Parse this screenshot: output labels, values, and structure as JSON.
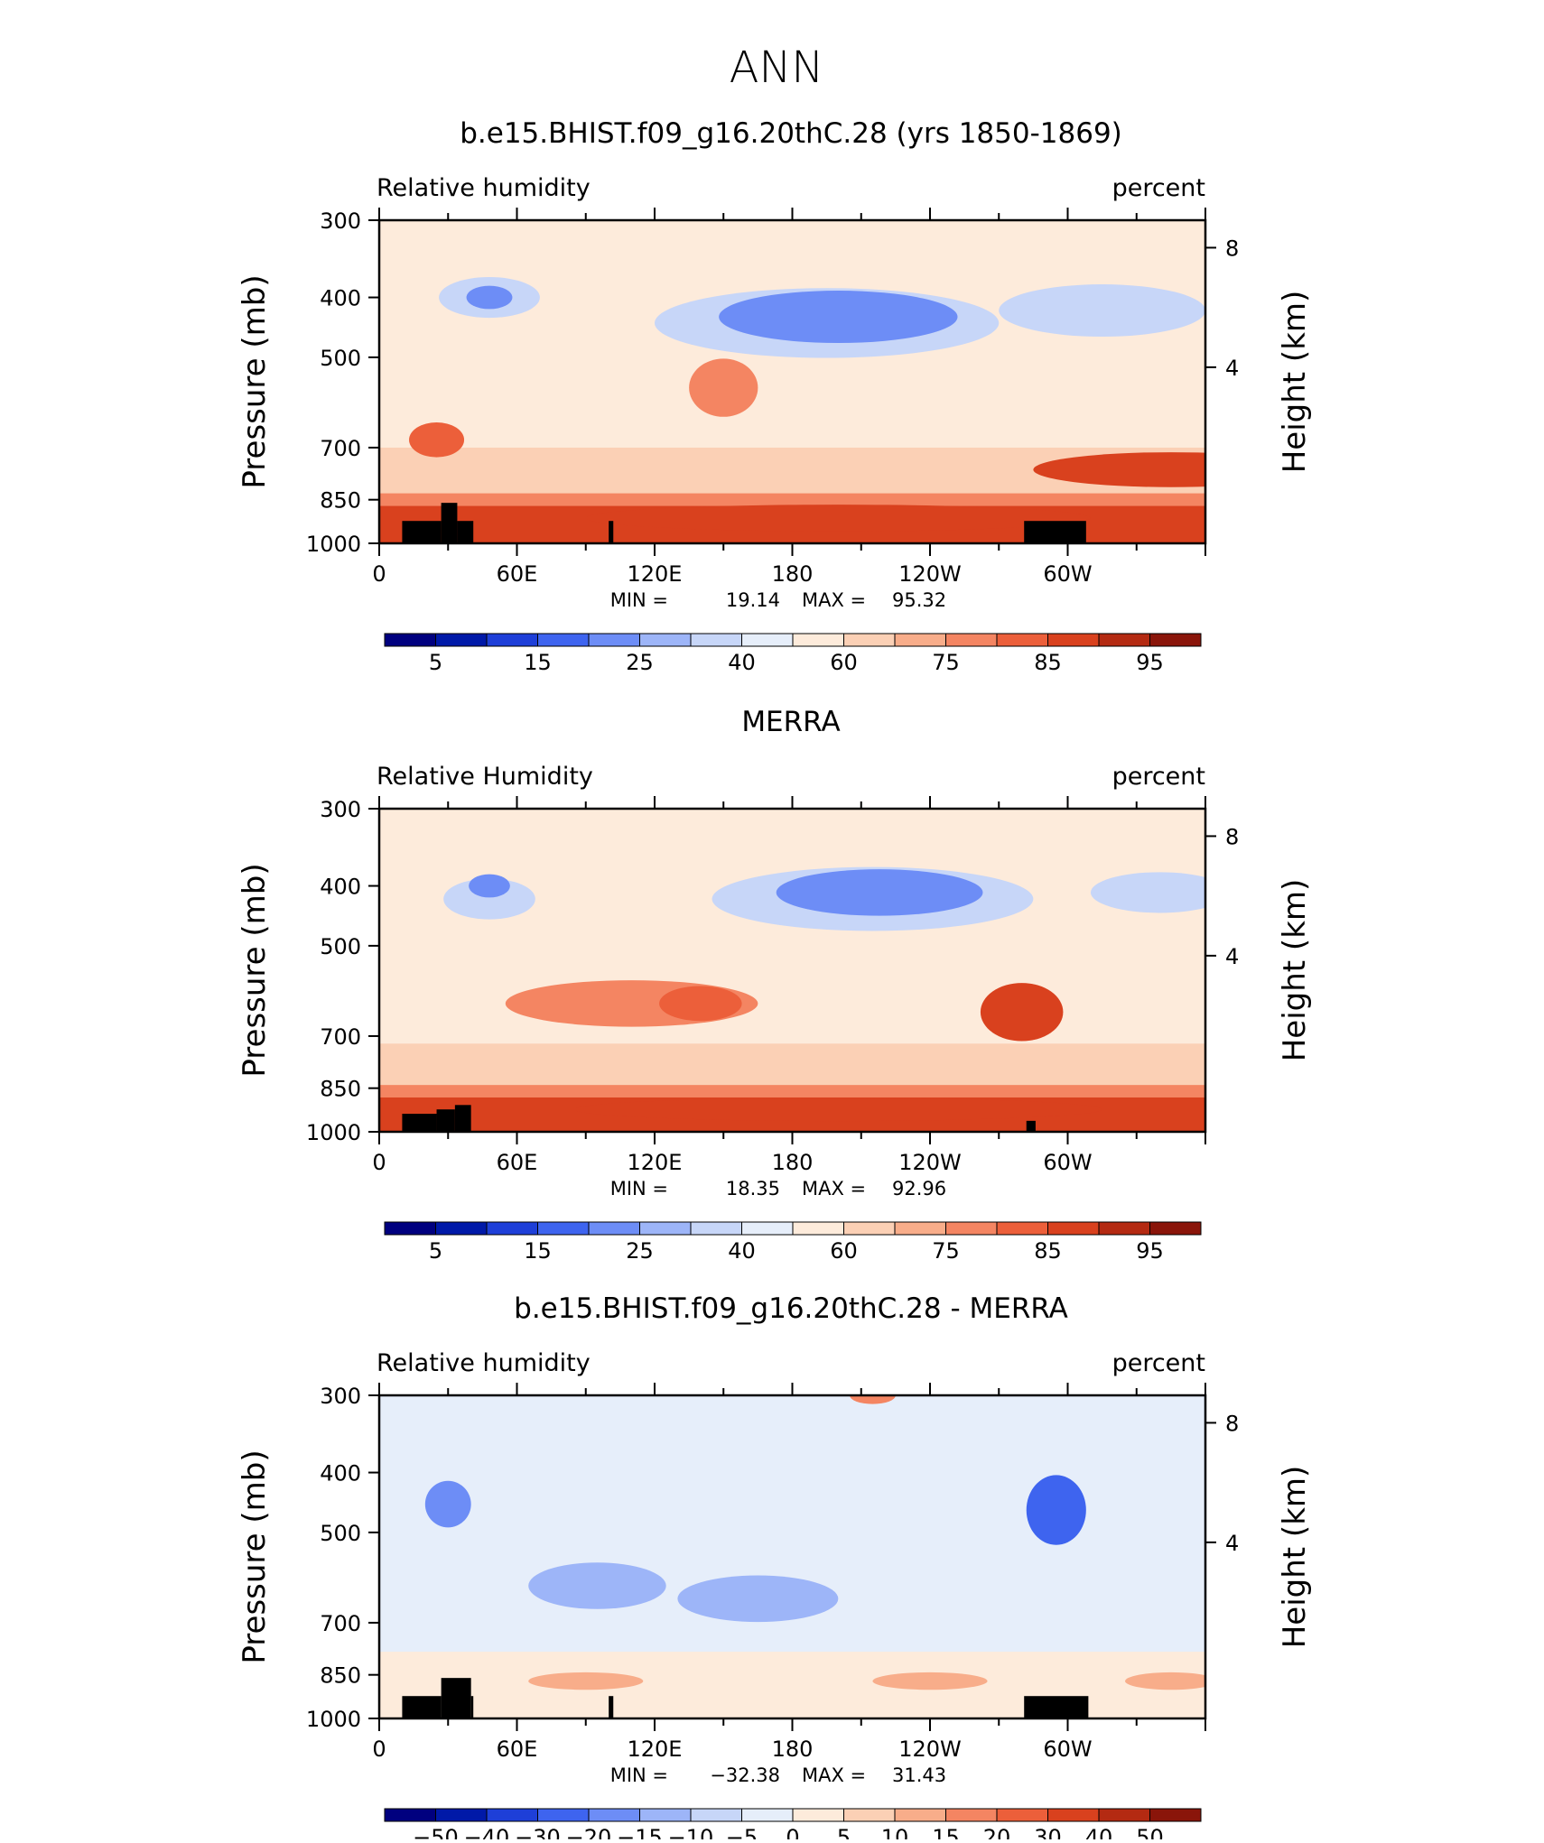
{
  "figure_title": "ANN",
  "chart_data": [
    {
      "type": "heatmap",
      "title": "b.e15.BHIST.f09_g16.20thC.28 (yrs 1850-1869)",
      "left_label": "Relative humidity",
      "right_label": "percent",
      "ylabel": "Pressure (mb)",
      "ylabel_right": "Height (km)",
      "yticks": [
        "300",
        "400",
        "500",
        "700",
        "850",
        "1000"
      ],
      "yticks_right": [
        "8",
        "4"
      ],
      "xticks": [
        "0",
        "60E",
        "120E",
        "180",
        "120W",
        "60W"
      ],
      "stats": {
        "min_label": "MIN =",
        "min": "19.14",
        "max_label": "MAX =",
        "max": "95.32"
      },
      "colorbar_labels": [
        "5",
        "15",
        "25",
        "40",
        "60",
        "75",
        "85",
        "95"
      ],
      "colorbar_colors": [
        "#00007f",
        "#0019a8",
        "#1e3fd8",
        "#3e64ef",
        "#6d8df6",
        "#9db5f8",
        "#c7d6f8",
        "#e6eefa",
        "#fdebdb",
        "#fbd0b5",
        "#f8ad8a",
        "#f48562",
        "#ec5f3a",
        "#d9411e",
        "#b42a12",
        "#8a150a"
      ],
      "blobs": [
        {
          "lon": 48,
          "p": 400,
          "rx": 22,
          "ry": 3.5,
          "value": 30
        },
        {
          "lon": 48,
          "p": 400,
          "rx": 10,
          "ry": 2,
          "value": 22
        },
        {
          "lon": 195,
          "p": 440,
          "rx": 75,
          "ry": 6,
          "value": 30
        },
        {
          "lon": 200,
          "p": 430,
          "rx": 52,
          "ry": 4.5,
          "value": 22
        },
        {
          "lon": 315,
          "p": 420,
          "rx": 45,
          "ry": 4.5,
          "value": 35
        },
        {
          "lon": 150,
          "p": 560,
          "rx": 15,
          "ry": 5,
          "value": 78
        },
        {
          "lon": 345,
          "p": 760,
          "rx": 60,
          "ry": 3,
          "value": 85
        },
        {
          "lon": 200,
          "p": 910,
          "rx": 110,
          "ry": 2.3,
          "value": 88
        },
        {
          "lon": 25,
          "p": 680,
          "rx": 12,
          "ry": 3,
          "value": 80
        }
      ]
    },
    {
      "type": "heatmap",
      "title": "MERRA",
      "left_label": "Relative Humidity",
      "right_label": "percent",
      "ylabel": "Pressure (mb)",
      "ylabel_right": "Height (km)",
      "yticks": [
        "300",
        "400",
        "500",
        "700",
        "850",
        "1000"
      ],
      "yticks_right": [
        "8",
        "4"
      ],
      "xticks": [
        "0",
        "60E",
        "120E",
        "180",
        "120W",
        "60W"
      ],
      "stats": {
        "min_label": "MIN =",
        "min": "18.35",
        "max_label": "MAX =",
        "max": "92.96"
      },
      "colorbar_labels": [
        "5",
        "15",
        "25",
        "40",
        "60",
        "75",
        "85",
        "95"
      ],
      "colorbar_colors": [
        "#00007f",
        "#0019a8",
        "#1e3fd8",
        "#3e64ef",
        "#6d8df6",
        "#9db5f8",
        "#c7d6f8",
        "#e6eefa",
        "#fdebdb",
        "#fbd0b5",
        "#f8ad8a",
        "#f48562",
        "#ec5f3a",
        "#d9411e",
        "#b42a12",
        "#8a150a"
      ],
      "blobs": [
        {
          "lon": 48,
          "p": 420,
          "rx": 20,
          "ry": 3.5,
          "value": 30
        },
        {
          "lon": 48,
          "p": 400,
          "rx": 9,
          "ry": 2,
          "value": 22
        },
        {
          "lon": 215,
          "p": 420,
          "rx": 70,
          "ry": 5.5,
          "value": 30
        },
        {
          "lon": 218,
          "p": 410,
          "rx": 45,
          "ry": 4,
          "value": 22
        },
        {
          "lon": 340,
          "p": 410,
          "rx": 30,
          "ry": 3.5,
          "value": 35
        },
        {
          "lon": 110,
          "p": 620,
          "rx": 55,
          "ry": 4,
          "value": 75
        },
        {
          "lon": 140,
          "p": 620,
          "rx": 18,
          "ry": 3,
          "value": 82
        },
        {
          "lon": 280,
          "p": 640,
          "rx": 18,
          "ry": 5,
          "value": 85
        },
        {
          "lon": 200,
          "p": 920,
          "rx": 115,
          "ry": 2,
          "value": 88
        }
      ]
    },
    {
      "type": "heatmap",
      "title": "b.e15.BHIST.f09_g16.20thC.28 - MERRA",
      "left_label": "Relative humidity",
      "right_label": "percent",
      "ylabel": "Pressure (mb)",
      "ylabel_right": "Height (km)",
      "yticks": [
        "300",
        "400",
        "500",
        "700",
        "850",
        "1000"
      ],
      "yticks_right": [
        "8",
        "4"
      ],
      "xticks": [
        "0",
        "60E",
        "120E",
        "180",
        "120W",
        "60W"
      ],
      "stats": {
        "min_label": "MIN =",
        "min": "−32.38",
        "max_label": "MAX =",
        "max": "31.43"
      },
      "colorbar_labels": [
        "−50",
        "−40",
        "−30",
        "−20",
        "−15",
        "−10",
        "−5",
        "0",
        "5",
        "10",
        "15",
        "20",
        "30",
        "40",
        "50"
      ],
      "colorbar_colors": [
        "#00007f",
        "#0019a8",
        "#1e3fd8",
        "#3e64ef",
        "#6d8df6",
        "#9db5f8",
        "#c7d6f8",
        "#e6eefa",
        "#fdebdb",
        "#fbd0b5",
        "#f8ad8a",
        "#f48562",
        "#ec5f3a",
        "#d9411e",
        "#b42a12",
        "#8a150a"
      ],
      "blobs": [
        {
          "lon": 30,
          "p": 450,
          "rx": 10,
          "ry": 4,
          "value": -18
        },
        {
          "lon": 95,
          "p": 610,
          "rx": 30,
          "ry": 4,
          "value": -15
        },
        {
          "lon": 165,
          "p": 640,
          "rx": 35,
          "ry": 4,
          "value": -15
        },
        {
          "lon": 295,
          "p": 460,
          "rx": 13,
          "ry": 6,
          "value": -25
        },
        {
          "lon": 215,
          "p": 300,
          "rx": 10,
          "ry": 1.5,
          "value": 15
        },
        {
          "lon": 90,
          "p": 870,
          "rx": 25,
          "ry": 1.5,
          "value": 12
        },
        {
          "lon": 240,
          "p": 870,
          "rx": 25,
          "ry": 1.5,
          "value": 12
        },
        {
          "lon": 345,
          "p": 870,
          "rx": 20,
          "ry": 1.5,
          "value": 10
        }
      ]
    }
  ]
}
